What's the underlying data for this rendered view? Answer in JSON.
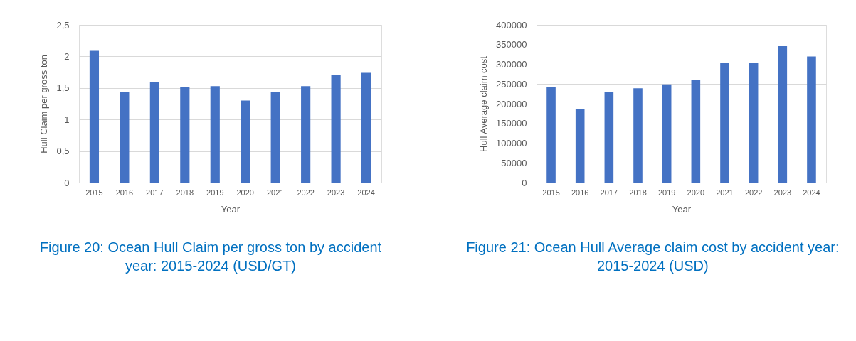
{
  "chart_data": [
    {
      "type": "bar",
      "categories": [
        "2015",
        "2016",
        "2017",
        "2018",
        "2019",
        "2020",
        "2021",
        "2022",
        "2023",
        "2024"
      ],
      "values": [
        2.09,
        1.44,
        1.59,
        1.52,
        1.53,
        1.3,
        1.43,
        1.53,
        1.71,
        1.74
      ],
      "color": "#4472c4",
      "xlabel": "Year",
      "ylabel": "Hull Claim per gross ton",
      "ylim": [
        0,
        2.5
      ],
      "yticks": [
        0,
        {
          "value": 0.5,
          "label": "0,5"
        },
        1,
        {
          "value": 1.5,
          "label": "1,5"
        },
        2,
        {
          "value": 2.5,
          "label": "2,5"
        }
      ],
      "grid": "y",
      "annotations": [
        "Figure 20: Ocean Hull Claim per gross ton by accident year: 2015-2024 (USD/GT)"
      ]
    },
    {
      "type": "bar",
      "categories": [
        "2015",
        "2016",
        "2017",
        "2018",
        "2019",
        "2020",
        "2021",
        "2022",
        "2023",
        "2024"
      ],
      "values": [
        243000,
        186000,
        230000,
        239000,
        249000,
        261000,
        304000,
        304000,
        346000,
        320000
      ],
      "color": "#4472c4",
      "xlabel": "Year",
      "ylabel": "Hull Average claim cost",
      "ylim": [
        0,
        400000
      ],
      "yticks": [
        0,
        50000,
        100000,
        150000,
        200000,
        250000,
        300000,
        350000,
        400000
      ],
      "grid": "y",
      "annotations": [
        "Figure 21: Ocean Hull Average claim cost by accident year: 2015-2024 (USD)"
      ]
    }
  ]
}
